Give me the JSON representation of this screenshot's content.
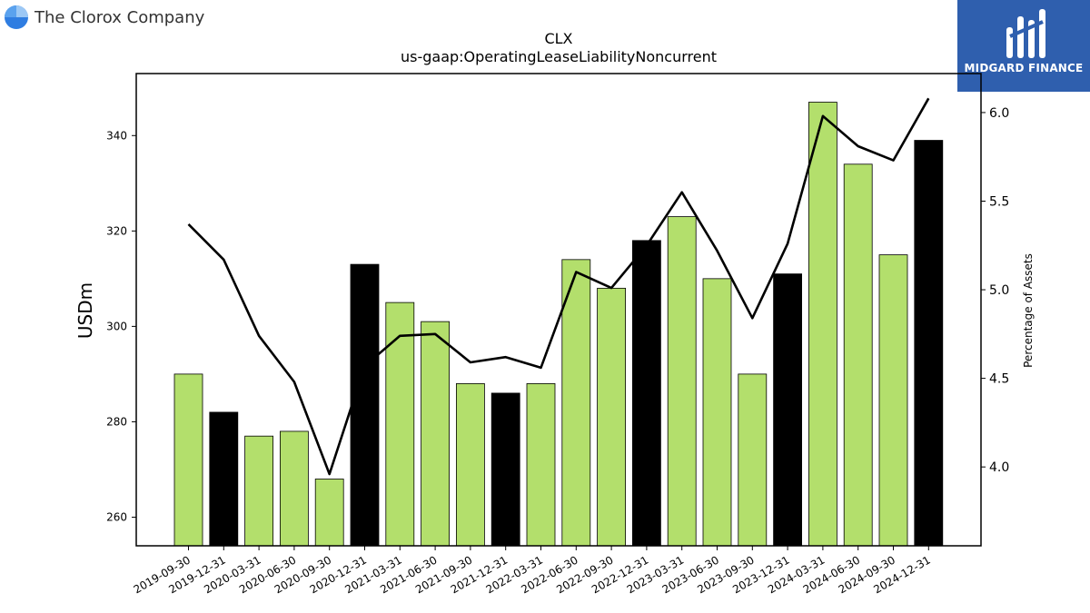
{
  "header": {
    "company": "The Clorox Company"
  },
  "brand": {
    "name": "MIDGARD FINANCE"
  },
  "colors": {
    "bar_regular": "#b3df6c",
    "bar_year_end": "#000000",
    "line": "#000000",
    "brand_bg": "#2f5fae"
  },
  "chart_data": {
    "type": "bar",
    "title": "CLX",
    "subtitle": "us-gaap:OperatingLeaseLiabilityNoncurrent",
    "ylabel": "USDm",
    "y2label": "Percentage of Assets",
    "ylim": [
      254,
      353
    ],
    "y2lim": [
      3.555,
      6.22
    ],
    "yticks": [
      260,
      280,
      300,
      320,
      340
    ],
    "y2ticks": [
      4.0,
      4.5,
      5.0,
      5.5,
      6.0
    ],
    "categories": [
      "2019-09-30",
      "2019-12-31",
      "2020-03-31",
      "2020-06-30",
      "2020-09-30",
      "2020-12-31",
      "2021-03-31",
      "2021-06-30",
      "2021-09-30",
      "2021-12-31",
      "2022-03-31",
      "2022-06-30",
      "2022-09-30",
      "2022-12-31",
      "2023-03-31",
      "2023-06-30",
      "2023-09-30",
      "2023-12-31",
      "2024-03-31",
      "2024-06-30",
      "2024-09-30",
      "2024-12-31"
    ],
    "series": [
      {
        "type": "bar",
        "axis": "left",
        "values": [
          290,
          282,
          277,
          278,
          268,
          313,
          305,
          301,
          288,
          286,
          288,
          314,
          308,
          318,
          323,
          310,
          290,
          311,
          347,
          334,
          315,
          339
        ],
        "year_end": [
          false,
          true,
          false,
          false,
          false,
          true,
          false,
          false,
          false,
          true,
          false,
          false,
          false,
          true,
          false,
          false,
          false,
          true,
          false,
          false,
          false,
          true
        ]
      },
      {
        "type": "line",
        "axis": "right",
        "values": [
          5.37,
          5.17,
          4.74,
          4.48,
          3.96,
          4.57,
          4.74,
          4.75,
          4.59,
          4.62,
          4.56,
          5.1,
          5.01,
          5.25,
          5.55,
          5.22,
          4.84,
          5.26,
          5.98,
          5.81,
          5.73,
          6.08
        ]
      }
    ],
    "grid": false,
    "legend": "none"
  }
}
